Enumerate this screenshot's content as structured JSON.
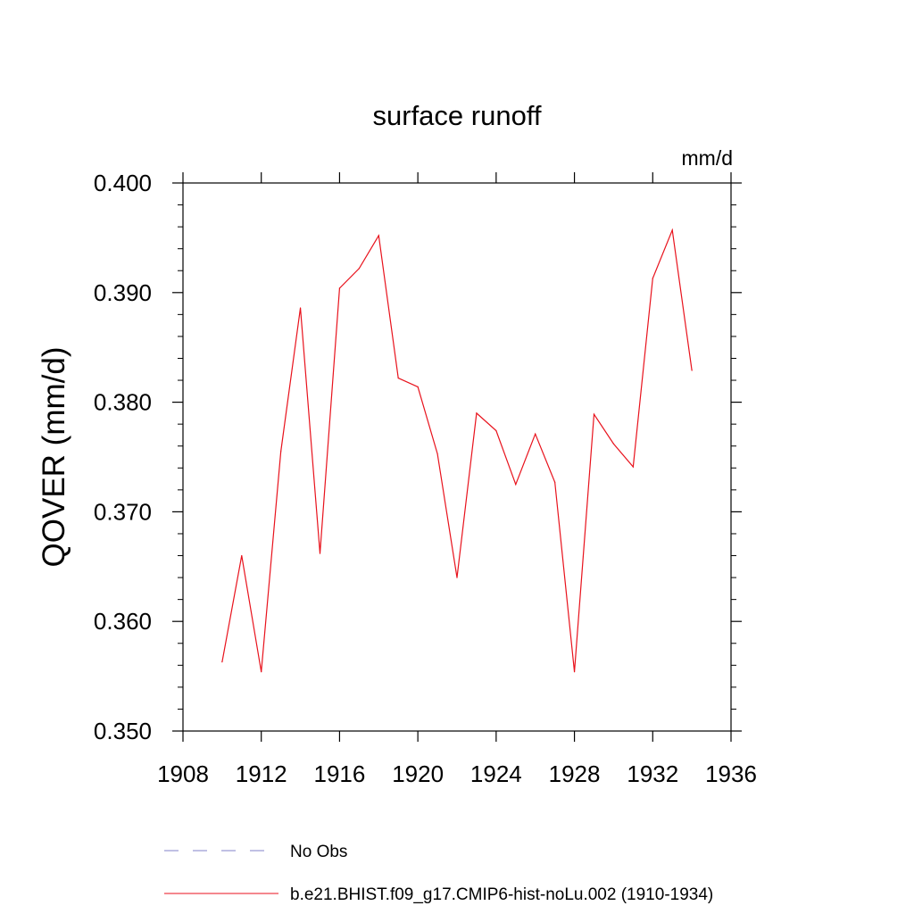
{
  "chart_data": {
    "type": "line",
    "title": "surface runoff",
    "units_label": "mm/d",
    "ylabel": "QOVER  (mm/d)",
    "xlabel": "",
    "xlim": [
      1908,
      1936
    ],
    "ylim": [
      0.35,
      0.4
    ],
    "x_ticks": [
      1908,
      1912,
      1916,
      1920,
      1924,
      1928,
      1932,
      1936
    ],
    "x_tick_labels": [
      "1908",
      "1912",
      "1916",
      "1920",
      "1924",
      "1928",
      "1932",
      "1936"
    ],
    "y_ticks": [
      0.35,
      0.36,
      0.37,
      0.38,
      0.39,
      0.4
    ],
    "y_tick_labels": [
      "0.350",
      "0.360",
      "0.370",
      "0.380",
      "0.390",
      "0.400"
    ],
    "grid": false,
    "legend_position": "bottom",
    "series": [
      {
        "name": "b.e21.BHIST.f09_g17.CMIP6-hist-noLu.002 (1910-1934)",
        "color": "#e8121c",
        "style": "solid",
        "x": [
          1910,
          1911,
          1912,
          1913,
          1914,
          1915,
          1916,
          1917,
          1918,
          1919,
          1920,
          1921,
          1922,
          1923,
          1924,
          1925,
          1926,
          1927,
          1928,
          1929,
          1930,
          1931,
          1932,
          1933,
          1934
        ],
        "y": [
          0.3563,
          0.366,
          0.3554,
          0.3755,
          0.3886,
          0.3662,
          0.3904,
          0.3922,
          0.3952,
          0.3822,
          0.3814,
          0.3753,
          0.364,
          0.379,
          0.3774,
          0.3725,
          0.3771,
          0.3727,
          0.3554,
          0.3789,
          0.3762,
          0.3741,
          0.3913,
          0.3957,
          0.3829
        ]
      }
    ],
    "legend": [
      {
        "label": "No Obs",
        "color": "#8080c8",
        "style": "dashed"
      },
      {
        "label": "b.e21.BHIST.f09_g17.CMIP6-hist-noLu.002 (1910-1934)",
        "color": "#e8121c",
        "style": "solid"
      }
    ]
  }
}
